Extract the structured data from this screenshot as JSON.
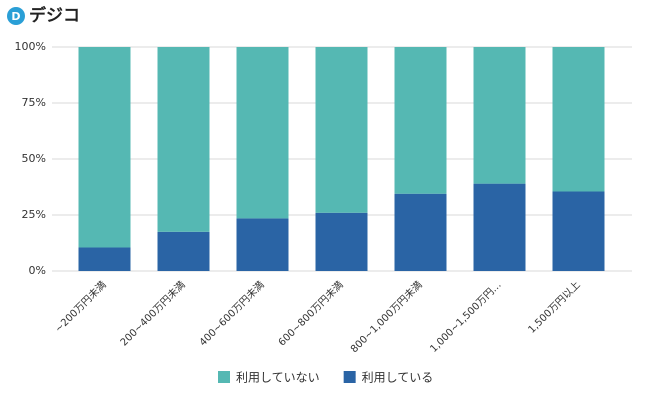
{
  "brand": "デジコ",
  "chart_data": {
    "type": "stacked_bar",
    "categories": [
      "~200万円未満",
      "200~400万円未満",
      "400~600万円未満",
      "600~800万円未満",
      "800~1,000万円未満",
      "1,000~1,500万円…",
      "1,500万円以上"
    ],
    "series": [
      {
        "name": "利用していない",
        "color": "#55b8b3",
        "values": [
          89.5,
          82.5,
          76.5,
          74,
          65.5,
          61,
          64.5
        ]
      },
      {
        "name": "利用している",
        "color": "#2a64a5",
        "values": [
          10.5,
          17.5,
          23.5,
          26,
          34.5,
          39,
          35.5
        ]
      }
    ],
    "ylim": [
      0,
      100
    ],
    "yticks": [
      {
        "value": 0,
        "label": "0%"
      },
      {
        "value": 25,
        "label": "25%"
      },
      {
        "value": 50,
        "label": "50%"
      },
      {
        "value": 75,
        "label": "75%"
      },
      {
        "value": 100,
        "label": "100%"
      }
    ],
    "grid": true,
    "legend": "bottom"
  }
}
